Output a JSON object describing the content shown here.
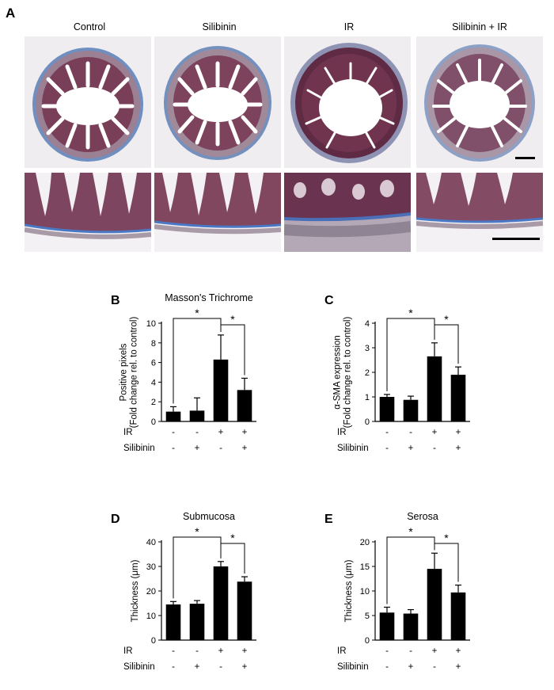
{
  "panel_a": {
    "letter": "A",
    "conditions": [
      "Control",
      "Silibinin",
      "IR",
      "Silibinin + IR"
    ]
  },
  "chart_data": [
    {
      "panel": "B",
      "type": "bar",
      "title": "Masson's Trichrome",
      "ylabel_lines": [
        "Positive pixels",
        "(Fold change rel. to control)"
      ],
      "ylim": [
        0,
        10
      ],
      "yticks": [
        0,
        2,
        4,
        6,
        8,
        10
      ],
      "values": [
        1.0,
        1.1,
        6.3,
        3.2
      ],
      "errors": [
        0.5,
        1.3,
        2.5,
        1.2
      ],
      "row_labels": [
        "IR",
        "Silibinin"
      ],
      "ir_signs": [
        "-",
        "-",
        "+",
        "+"
      ],
      "silibinin_signs": [
        "-",
        "+",
        "-",
        "+"
      ],
      "significance": [
        {
          "from": 0,
          "to": 2,
          "label": "*"
        },
        {
          "from": 2,
          "to": 3,
          "label": "*"
        }
      ],
      "bar_color": "#000000"
    },
    {
      "panel": "C",
      "type": "bar",
      "title": "",
      "ylabel_lines": [
        "α-SMA expression",
        "(Fold change rel. to control)"
      ],
      "ylim": [
        0,
        4
      ],
      "yticks": [
        0,
        1,
        2,
        3,
        4
      ],
      "values": [
        1.0,
        0.88,
        2.65,
        1.9
      ],
      "errors": [
        0.1,
        0.15,
        0.55,
        0.32
      ],
      "row_labels": [
        "IR",
        "Silibinin"
      ],
      "ir_signs": [
        "-",
        "-",
        "+",
        "+"
      ],
      "silibinin_signs": [
        "-",
        "+",
        "-",
        "+"
      ],
      "significance": [
        {
          "from": 0,
          "to": 2,
          "label": "*"
        },
        {
          "from": 2,
          "to": 3,
          "label": "*"
        }
      ],
      "bar_color": "#000000"
    },
    {
      "panel": "D",
      "type": "bar",
      "title": "Submucosa",
      "ylabel_lines": [
        "Thickness (μm)"
      ],
      "ylim": [
        0,
        40
      ],
      "yticks": [
        0,
        10,
        20,
        30,
        40
      ],
      "values": [
        14.5,
        14.8,
        30.0,
        23.8
      ],
      "errors": [
        1.2,
        1.3,
        2.0,
        2.0
      ],
      "row_labels": [
        "IR",
        "Silibinin"
      ],
      "ir_signs": [
        "-",
        "-",
        "+",
        "+"
      ],
      "silibinin_signs": [
        "-",
        "+",
        "-",
        "+"
      ],
      "significance": [
        {
          "from": 0,
          "to": 2,
          "label": "*"
        },
        {
          "from": 2,
          "to": 3,
          "label": "*"
        }
      ],
      "bar_color": "#000000"
    },
    {
      "panel": "E",
      "type": "bar",
      "title": "Serosa",
      "ylabel_lines": [
        "Thickness (μm)"
      ],
      "ylim": [
        0,
        20
      ],
      "yticks": [
        0,
        5,
        10,
        15,
        20
      ],
      "values": [
        5.6,
        5.4,
        14.5,
        9.7
      ],
      "errors": [
        1.1,
        0.8,
        3.2,
        1.5
      ],
      "row_labels": [
        "IR",
        "Silibinin"
      ],
      "ir_signs": [
        "-",
        "-",
        "+",
        "+"
      ],
      "silibinin_signs": [
        "-",
        "+",
        "-",
        "+"
      ],
      "significance": [
        {
          "from": 0,
          "to": 2,
          "label": "*"
        },
        {
          "from": 2,
          "to": 3,
          "label": "*"
        }
      ],
      "bar_color": "#000000"
    }
  ]
}
